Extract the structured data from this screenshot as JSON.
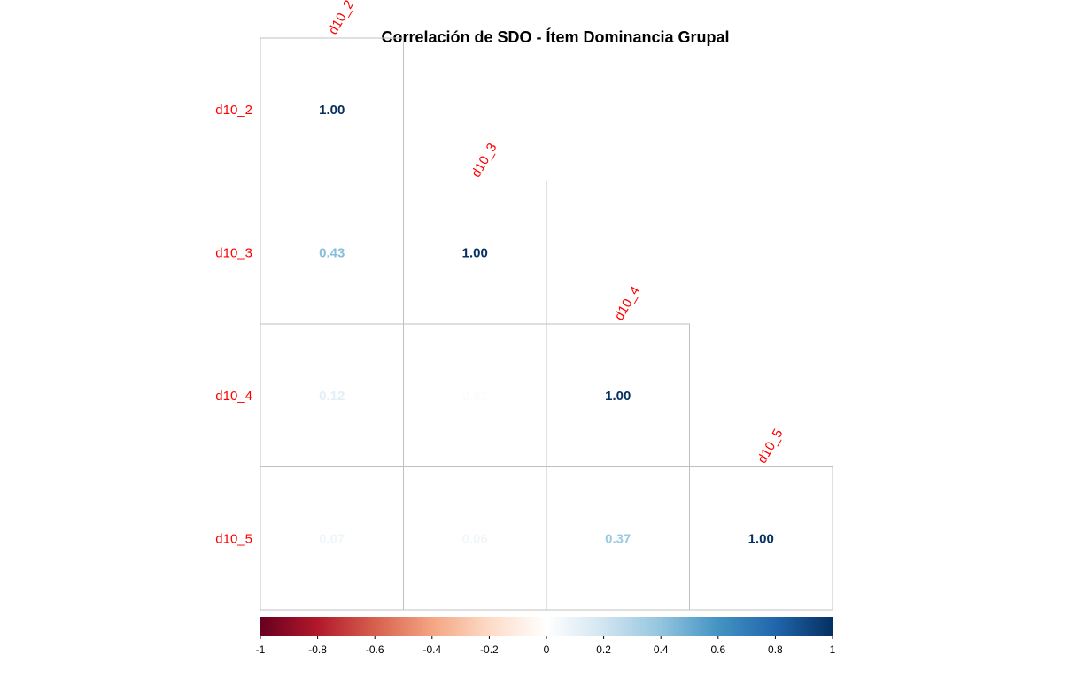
{
  "chart_data": {
    "type": "heatmap",
    "title": "Correlación de SDO - Ítem Dominancia Grupal",
    "variables": [
      "d10_2",
      "d10_3",
      "d10_4",
      "d10_5"
    ],
    "matrix": [
      [
        1.0,
        null,
        null,
        null
      ],
      [
        0.43,
        1.0,
        null,
        null
      ],
      [
        0.12,
        0.02,
        1.0,
        null
      ],
      [
        0.07,
        0.06,
        0.37,
        1.0
      ]
    ],
    "labels": [
      [
        "1.00",
        null,
        null,
        null
      ],
      [
        "0.43",
        "1.00",
        null,
        null
      ],
      [
        "0.12",
        "0.02",
        "1.00",
        null
      ],
      [
        "0.07",
        "0.06",
        "0.37",
        "1.00"
      ]
    ],
    "shape": "lower-triangle",
    "label_color": "#ff0000",
    "colorbar": {
      "range": [
        -1,
        1
      ],
      "ticks": [
        "-1",
        "-0.8",
        "-0.6",
        "-0.4",
        "-0.2",
        "0",
        "0.2",
        "0.4",
        "0.6",
        "0.8",
        "1"
      ],
      "colors": [
        "#67001f",
        "#b2182b",
        "#d6604d",
        "#f4a582",
        "#fddbc7",
        "#ffffff",
        "#d1e5f0",
        "#92c5de",
        "#4393c3",
        "#2166ac",
        "#053061"
      ]
    }
  }
}
